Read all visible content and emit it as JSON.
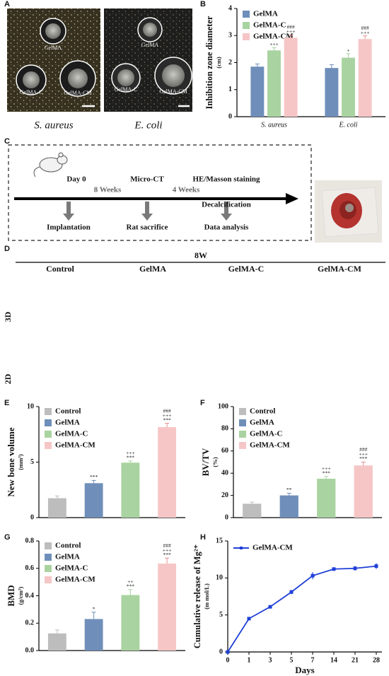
{
  "figure": {
    "A": {
      "label": "A",
      "photos": [
        {
          "caption": "S. aureus",
          "labels": [
            "GelMA",
            "GelMA-C",
            "GelMA-CM"
          ]
        },
        {
          "caption": "E. coli",
          "labels": [
            "GelMA",
            "GelMA-C",
            "GelMA-CM"
          ]
        }
      ]
    },
    "C": {
      "label": "C",
      "stages": [
        {
          "top": "Day 0",
          "bottom": "Implantation"
        },
        {
          "top": "Micro-CT",
          "bottom": "Rat sacrifice"
        },
        {
          "top": "HE/Masson staining",
          "bottom": "Data analysis"
        }
      ],
      "intervals": [
        "8 Weeks",
        "4 Weeks"
      ],
      "note": "Decalcification"
    },
    "D": {
      "label": "D",
      "time": "8W",
      "columns": [
        "Control",
        "GelMA",
        "GelMA-C",
        "GelMA-CM"
      ],
      "rows": [
        "3D",
        "2D"
      ]
    }
  },
  "chart_data": [
    {
      "type": "grouped_bar",
      "panel": "B",
      "ylabel": "Inhibition zone diameter",
      "yunit": "(cm)",
      "categories": [
        "S. aureus",
        "E. coli"
      ],
      "series": [
        {
          "name": "GelMA",
          "color": "#6f8fba",
          "values": [
            1.85,
            1.8
          ],
          "errors": [
            0.1,
            0.12
          ],
          "annotations": [
            null,
            null
          ]
        },
        {
          "name": "GelMA-C",
          "color": "#a9d3a0",
          "values": [
            2.45,
            2.18
          ],
          "errors": [
            0.1,
            0.15
          ],
          "annotations": [
            [
              "+++"
            ],
            [
              "+"
            ]
          ]
        },
        {
          "name": "GelMA-CM",
          "color": "#f6c6c6",
          "values": [
            2.92,
            2.87
          ],
          "errors": [
            0.1,
            0.12
          ],
          "annotations": [
            [
              "###",
              "+++"
            ],
            [
              "###",
              "+++"
            ]
          ]
        }
      ],
      "ylim": [
        0,
        4
      ],
      "yticks": [
        0,
        1,
        2,
        3,
        4
      ]
    },
    {
      "type": "bar",
      "panel": "E",
      "ylabel": "New bone volume",
      "yunit": "(mm³)",
      "categories": [
        "Control",
        "GelMA",
        "GelMA-C",
        "GelMA-CM"
      ],
      "colors": [
        "#bdbdbd",
        "#6f8fba",
        "#a9d3a0",
        "#f6c6c6"
      ],
      "values": [
        1.75,
        3.1,
        4.95,
        8.15
      ],
      "errors": [
        0.2,
        0.25,
        0.15,
        0.35
      ],
      "annotations": [
        null,
        [
          "***"
        ],
        [
          "+++",
          "***"
        ],
        [
          "###",
          "+++",
          "***"
        ]
      ],
      "ylim": [
        0,
        10
      ],
      "yticks": [
        0,
        5,
        10
      ]
    },
    {
      "type": "bar",
      "panel": "F",
      "ylabel": "BV/TV",
      "yunit": "(%)",
      "categories": [
        "Control",
        "GelMA",
        "GelMA-C",
        "GelMA-CM"
      ],
      "colors": [
        "#bdbdbd",
        "#6f8fba",
        "#a9d3a0",
        "#f6c6c6"
      ],
      "values": [
        12.5,
        20,
        35,
        47
      ],
      "errors": [
        1.5,
        2,
        2,
        3
      ],
      "annotations": [
        null,
        [
          "**"
        ],
        [
          "+++",
          "***"
        ],
        [
          "###",
          "+++",
          "***"
        ]
      ],
      "ylim": [
        0,
        100
      ],
      "yticks": [
        0,
        20,
        40,
        60,
        80,
        100
      ]
    },
    {
      "type": "bar",
      "panel": "G",
      "ylabel": "BMD",
      "yunit": "(g/cm³)",
      "categories": [
        "Control",
        "GelMA",
        "GelMA-C",
        "GelMA-CM"
      ],
      "colors": [
        "#bdbdbd",
        "#6f8fba",
        "#a9d3a0",
        "#f6c6c6"
      ],
      "values": [
        0.125,
        0.23,
        0.405,
        0.635
      ],
      "errors": [
        0.025,
        0.05,
        0.04,
        0.04
      ],
      "annotations": [
        null,
        [
          "*"
        ],
        [
          "++",
          "***"
        ],
        [
          "###",
          "+++",
          "***"
        ]
      ],
      "ylim": [
        0,
        0.8
      ],
      "yticks": [
        {
          "value": 0,
          "label": "0.0"
        },
        0.2,
        0.4,
        0.6,
        0.8
      ]
    },
    {
      "type": "line",
      "panel": "H",
      "ylabel": "Cumulative release of Mg²⁺",
      "yunit": "(m mol/L)",
      "xlabel": "Days",
      "categories": [
        "0",
        "1",
        "3",
        "5",
        "7",
        "14",
        "21",
        "28"
      ],
      "series": [
        {
          "name": "GelMA-CM",
          "color": "#1f3fd8",
          "values": [
            0,
            4.5,
            6.1,
            8.1,
            10.3,
            11.2,
            11.3,
            11.6
          ],
          "errors": [
            0,
            0.15,
            0.15,
            0.3,
            0.5,
            0.2,
            0.3,
            0.4
          ]
        }
      ],
      "ylim": [
        0,
        15
      ],
      "yticks": [
        0,
        5,
        10,
        15
      ]
    }
  ]
}
